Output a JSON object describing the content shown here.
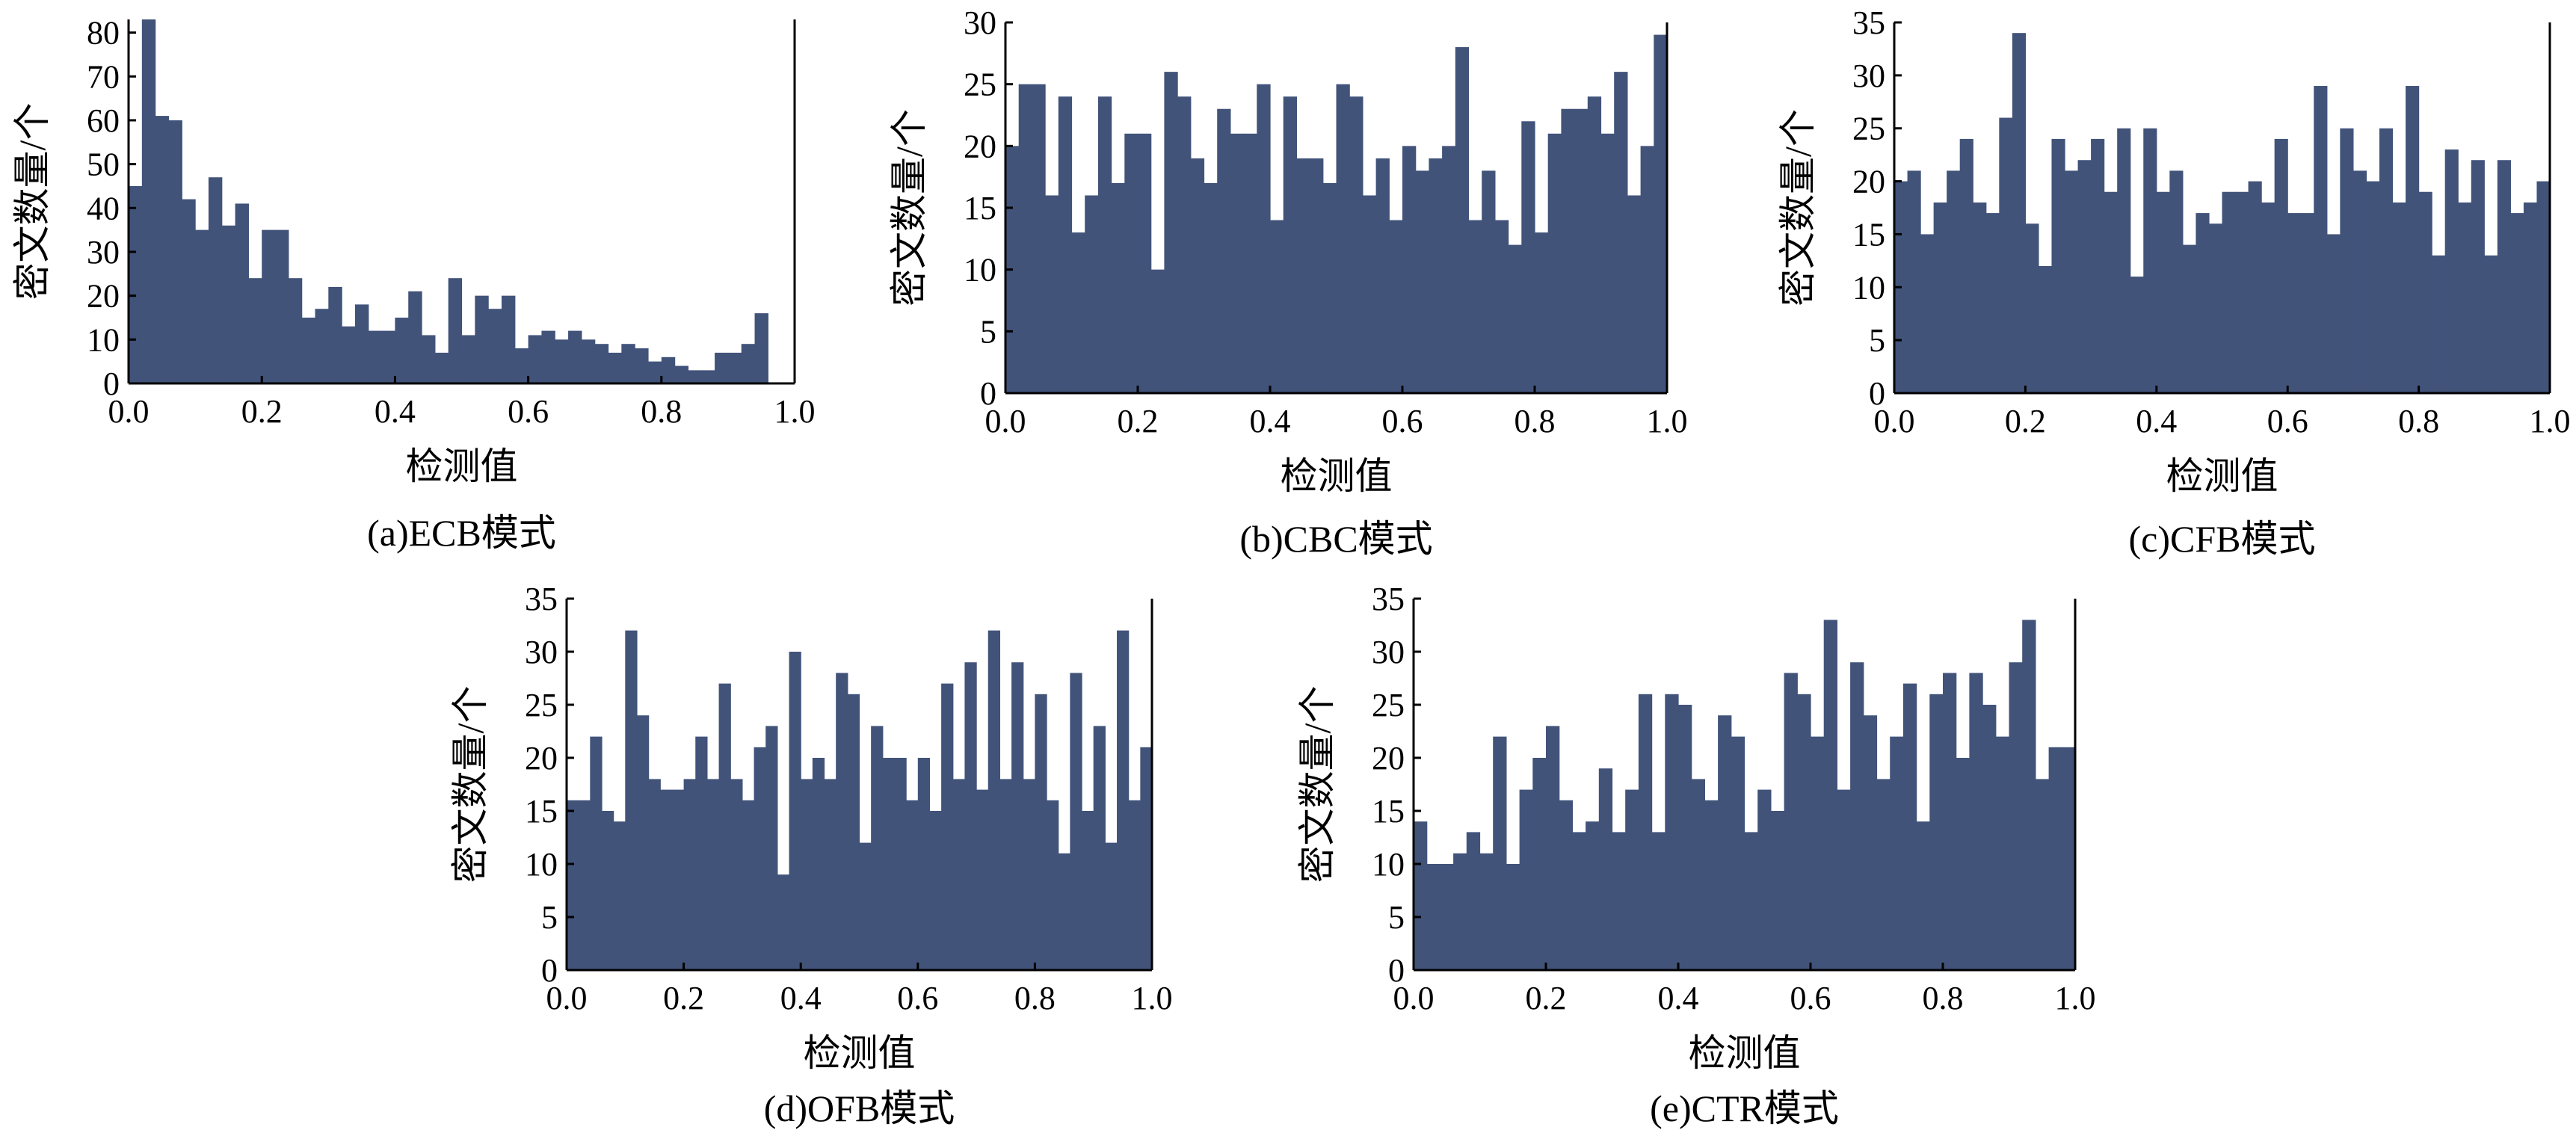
{
  "colors": {
    "bar": "#42537a",
    "axis": "#000000",
    "background": "#ffffff"
  },
  "chart_data": [
    {
      "type": "bar",
      "caption": "(a)ECB模式",
      "xlabel": "检测值",
      "ylabel": "密文数量/个",
      "xlim": [
        0,
        1
      ],
      "ylim": [
        0,
        83
      ],
      "xticks": [
        "0.0",
        "0.2",
        "0.4",
        "0.6",
        "0.8",
        "1.0"
      ],
      "yticks": [
        "0",
        "10",
        "20",
        "30",
        "40",
        "50",
        "60",
        "70",
        "80"
      ],
      "bins": 50,
      "values": [
        45,
        83,
        61,
        60,
        42,
        35,
        47,
        36,
        41,
        24,
        35,
        35,
        24,
        15,
        17,
        22,
        13,
        18,
        12,
        12,
        15,
        21,
        11,
        7,
        24,
        11,
        20,
        17,
        20,
        8,
        11,
        12,
        10,
        12,
        10,
        9,
        7,
        9,
        8,
        5,
        6,
        4,
        3,
        3,
        7,
        7,
        9,
        16,
        0,
        0
      ]
    },
    {
      "type": "bar",
      "caption": "(b)CBC模式",
      "xlabel": "检测值",
      "ylabel": "密文数量/个",
      "xlim": [
        0,
        1
      ],
      "ylim": [
        0,
        30
      ],
      "xticks": [
        "0.0",
        "0.2",
        "0.4",
        "0.6",
        "0.8",
        "1.0"
      ],
      "yticks": [
        "0",
        "5",
        "10",
        "15",
        "20",
        "25",
        "30"
      ],
      "bins": 50,
      "values": [
        20,
        25,
        25,
        16,
        24,
        13,
        16,
        24,
        17,
        21,
        21,
        10,
        26,
        24,
        19,
        17,
        23,
        21,
        21,
        25,
        14,
        24,
        19,
        19,
        17,
        25,
        24,
        16,
        19,
        14,
        20,
        18,
        19,
        20,
        28,
        14,
        18,
        14,
        12,
        22,
        13,
        21,
        23,
        23,
        24,
        21,
        26,
        16,
        20,
        29
      ]
    },
    {
      "type": "bar",
      "caption": "(c)CFB模式",
      "xlabel": "检测值",
      "ylabel": "密文数量/个",
      "xlim": [
        0,
        1
      ],
      "ylim": [
        0,
        35
      ],
      "xticks": [
        "0.0",
        "0.2",
        "0.4",
        "0.6",
        "0.8",
        "1.0"
      ],
      "yticks": [
        "0",
        "5",
        "10",
        "15",
        "20",
        "25",
        "30",
        "35"
      ],
      "bins": 50,
      "values": [
        20,
        21,
        15,
        18,
        21,
        24,
        18,
        17,
        26,
        34,
        16,
        12,
        24,
        21,
        22,
        24,
        19,
        25,
        11,
        25,
        19,
        21,
        14,
        17,
        16,
        19,
        19,
        20,
        18,
        24,
        17,
        17,
        29,
        15,
        25,
        21,
        20,
        25,
        18,
        29,
        19,
        13,
        23,
        18,
        22,
        13,
        22,
        17,
        18,
        20
      ]
    },
    {
      "type": "bar",
      "caption": "(d)OFB模式",
      "xlabel": "检测值",
      "ylabel": "密文数量/个",
      "xlim": [
        0,
        1
      ],
      "ylim": [
        0,
        35
      ],
      "xticks": [
        "0.0",
        "0.2",
        "0.4",
        "0.6",
        "0.8",
        "1.0"
      ],
      "yticks": [
        "0",
        "5",
        "10",
        "15",
        "20",
        "25",
        "30",
        "35"
      ],
      "bins": 50,
      "values": [
        16,
        16,
        22,
        15,
        14,
        32,
        24,
        18,
        17,
        17,
        18,
        22,
        18,
        27,
        18,
        16,
        21,
        23,
        9,
        30,
        18,
        20,
        18,
        28,
        26,
        12,
        23,
        20,
        20,
        16,
        20,
        15,
        27,
        18,
        29,
        17,
        32,
        18,
        29,
        18,
        26,
        16,
        11,
        28,
        15,
        23,
        12,
        32,
        16,
        21
      ]
    },
    {
      "type": "bar",
      "caption": "(e)CTR模式",
      "xlabel": "检测值",
      "ylabel": "密文数量/个",
      "xlim": [
        0,
        1
      ],
      "ylim": [
        0,
        35
      ],
      "xticks": [
        "0.0",
        "0.2",
        "0.4",
        "0.6",
        "0.8",
        "1.0"
      ],
      "yticks": [
        "0",
        "5",
        "10",
        "15",
        "20",
        "25",
        "30",
        "35"
      ],
      "bins": 50,
      "values": [
        14,
        10,
        10,
        11,
        13,
        11,
        22,
        10,
        17,
        20,
        23,
        16,
        13,
        14,
        19,
        13,
        17,
        26,
        13,
        26,
        25,
        18,
        16,
        24,
        22,
        13,
        17,
        15,
        28,
        26,
        22,
        33,
        17,
        29,
        24,
        18,
        22,
        27,
        14,
        26,
        28,
        20,
        28,
        25,
        22,
        29,
        33,
        18,
        21,
        21
      ]
    }
  ]
}
